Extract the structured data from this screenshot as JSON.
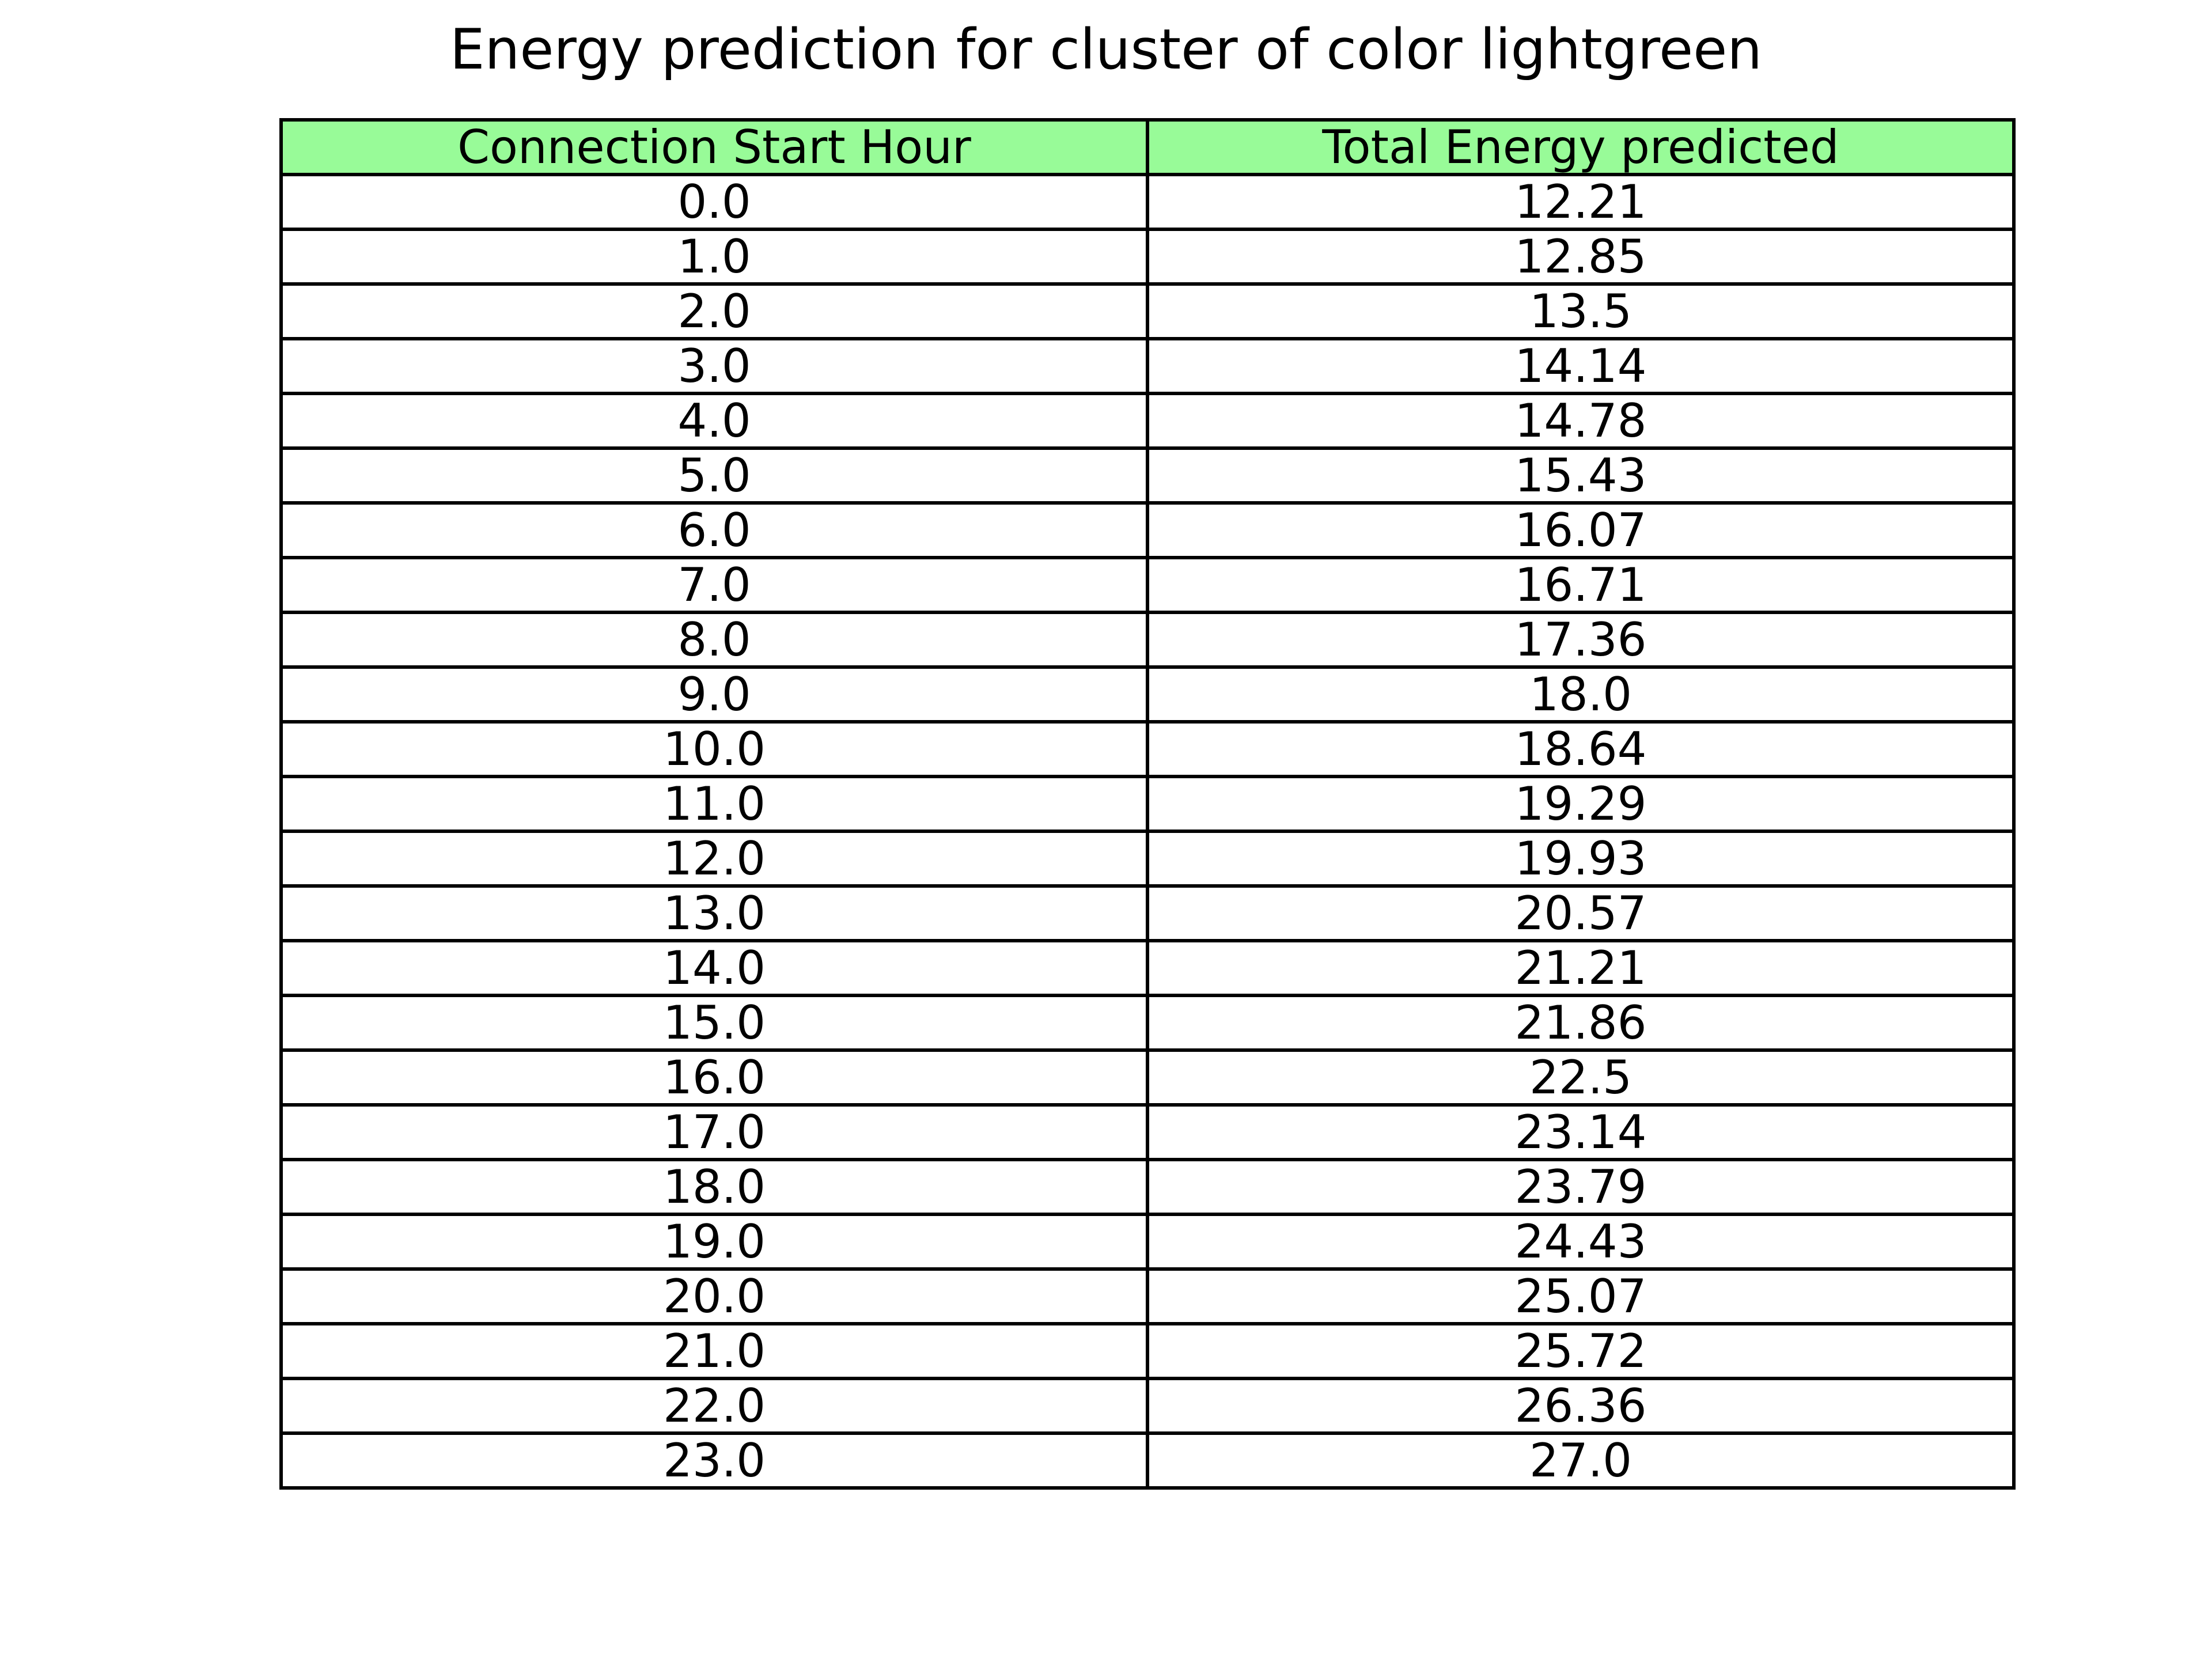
{
  "chart_data": {
    "type": "table",
    "title": "Energy prediction for cluster of color lightgreen",
    "header_color": "#98fb98",
    "columns": [
      "Connection Start Hour",
      "Total Energy predicted"
    ],
    "rows": [
      [
        "0.0",
        "12.21"
      ],
      [
        "1.0",
        "12.85"
      ],
      [
        "2.0",
        "13.5"
      ],
      [
        "3.0",
        "14.14"
      ],
      [
        "4.0",
        "14.78"
      ],
      [
        "5.0",
        "15.43"
      ],
      [
        "6.0",
        "16.07"
      ],
      [
        "7.0",
        "16.71"
      ],
      [
        "8.0",
        "17.36"
      ],
      [
        "9.0",
        "18.0"
      ],
      [
        "10.0",
        "18.64"
      ],
      [
        "11.0",
        "19.29"
      ],
      [
        "12.0",
        "19.93"
      ],
      [
        "13.0",
        "20.57"
      ],
      [
        "14.0",
        "21.21"
      ],
      [
        "15.0",
        "21.86"
      ],
      [
        "16.0",
        "22.5"
      ],
      [
        "17.0",
        "23.14"
      ],
      [
        "18.0",
        "23.79"
      ],
      [
        "19.0",
        "24.43"
      ],
      [
        "20.0",
        "25.07"
      ],
      [
        "21.0",
        "25.72"
      ],
      [
        "22.0",
        "26.36"
      ],
      [
        "23.0",
        "27.0"
      ]
    ]
  }
}
